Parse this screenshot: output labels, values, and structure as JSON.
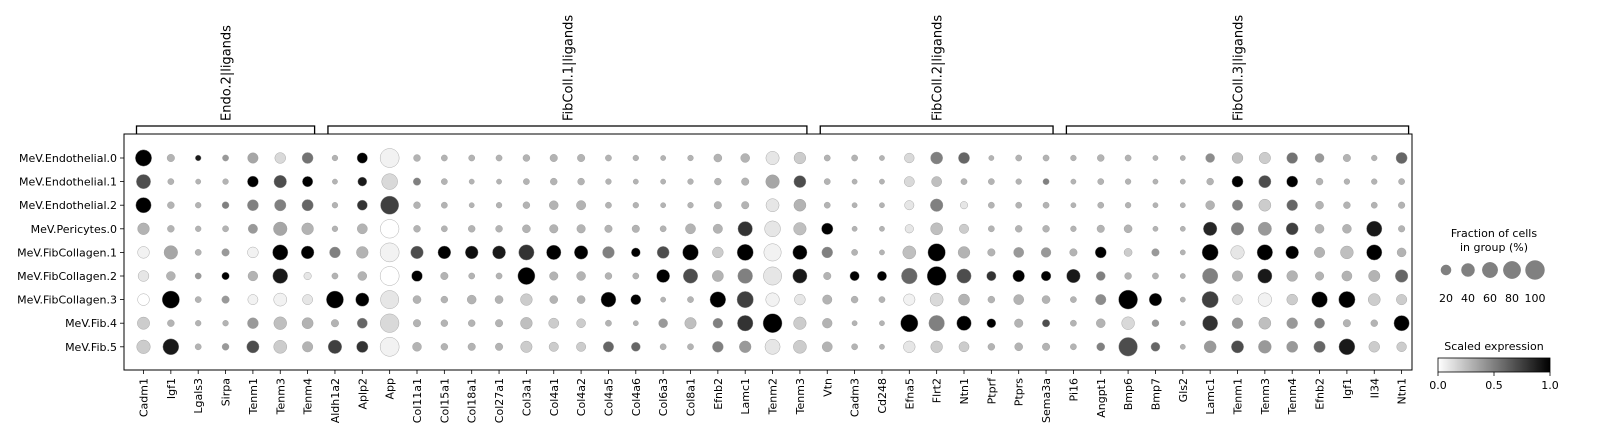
{
  "chart_data": {
    "type": "dotplot",
    "groups": [
      "Endo.2|ligands",
      "FibColl.1|ligands",
      "FibColl.2|ligands",
      "FibColl.3|ligands"
    ],
    "group_spans": [
      [
        0,
        6
      ],
      [
        7,
        24
      ],
      [
        25,
        33
      ],
      [
        34,
        46
      ]
    ],
    "genes": [
      "Cadm1",
      "Igf1",
      "Lgals3",
      "Sirpa",
      "Tenm1",
      "Tenm3",
      "Tenm4",
      "Aldh1a2",
      "Aplp2",
      "App",
      "Col11a1",
      "Col15a1",
      "Col18a1",
      "Col27a1",
      "Col3a1",
      "Col4a1",
      "Col4a2",
      "Col4a5",
      "Col4a6",
      "Col6a3",
      "Col8a1",
      "Efnb2",
      "Lamc1",
      "Tenm2",
      "Tenm3",
      "Vtn",
      "Cadm3",
      "Cd248",
      "Efna5",
      "Flrt2",
      "Ntn1",
      "Ptprf",
      "Ptprs",
      "Sema3a",
      "Pi16",
      "Angpt1",
      "Bmp6",
      "Bmp7",
      "Gls2",
      "Lamc1",
      "Tenm1",
      "Tenm3",
      "Tenm4",
      "Efnb2",
      "Igf1",
      "Il34",
      "Ntn1"
    ],
    "rows": [
      "MeV.Endothelial.0",
      "MeV.Endothelial.1",
      "MeV.Endothelial.2",
      "MeV.Pericytes.0",
      "MeV.FibCollagen.1",
      "MeV.FibCollagen.2",
      "MeV.FibCollagen.3",
      "MeV.Fib.4",
      "MeV.Fib.5"
    ],
    "fraction": [
      [
        70,
        8,
        3,
        4,
        22,
        24,
        25,
        3,
        22,
        100,
        6,
        4,
        4,
        4,
        6,
        8,
        8,
        4,
        3,
        2,
        3,
        10,
        14,
        42,
        30,
        4,
        4,
        2,
        18,
        32,
        26,
        2,
        4,
        4,
        3,
        6,
        4,
        2,
        2,
        14,
        24,
        28,
        24,
        14,
        8,
        3,
        26
      ],
      [
        50,
        4,
        2,
        3,
        25,
        36,
        22,
        2,
        14,
        65,
        8,
        4,
        2,
        2,
        4,
        6,
        6,
        3,
        2,
        2,
        3,
        6,
        8,
        44,
        32,
        4,
        2,
        2,
        20,
        20,
        4,
        4,
        3,
        4,
        2,
        4,
        3,
        2,
        2,
        6,
        26,
        34,
        26,
        6,
        3,
        3,
        4
      ],
      [
        60,
        6,
        3,
        6,
        25,
        28,
        27,
        3,
        20,
        90,
        6,
        4,
        2,
        3,
        6,
        14,
        16,
        4,
        3,
        2,
        3,
        8,
        8,
        40,
        32,
        4,
        2,
        2,
        16,
        36,
        8,
        4,
        4,
        4,
        2,
        4,
        3,
        2,
        2,
        14,
        22,
        32,
        24,
        10,
        6,
        4,
        5
      ],
      [
        30,
        6,
        3,
        4,
        16,
        44,
        30,
        3,
        20,
        95,
        6,
        4,
        6,
        6,
        10,
        12,
        12,
        8,
        8,
        4,
        20,
        16,
        52,
        65,
        36,
        28,
        2,
        2,
        12,
        32,
        16,
        4,
        6,
        6,
        3,
        8,
        10,
        2,
        2,
        44,
        36,
        42,
        32,
        14,
        14,
        60,
        5
      ],
      [
        30,
        44,
        4,
        8,
        24,
        60,
        38,
        24,
        30,
        100,
        36,
        38,
        38,
        40,
        60,
        52,
        44,
        30,
        14,
        32,
        64,
        24,
        68,
        80,
        50,
        24,
        4,
        2,
        40,
        82,
        30,
        8,
        20,
        18,
        8,
        26,
        10,
        8,
        2,
        68,
        44,
        62,
        38,
        22,
        38,
        60,
        14
      ],
      [
        24,
        14,
        4,
        8,
        18,
        56,
        8,
        4,
        14,
        100,
        24,
        8,
        4,
        4,
        78,
        12,
        14,
        6,
        4,
        40,
        52,
        26,
        54,
        90,
        50,
        8,
        16,
        16,
        64,
        100,
        50,
        16,
        30,
        18,
        44,
        14,
        6,
        4,
        2,
        60,
        22,
        50,
        24,
        12,
        20,
        28,
        36
      ],
      [
        30,
        80,
        4,
        8,
        20,
        40,
        20,
        78,
        42,
        90,
        10,
        6,
        14,
        10,
        30,
        10,
        10,
        56,
        20,
        2,
        4,
        64,
        70,
        44,
        24,
        16,
        6,
        4,
        28,
        40,
        26,
        6,
        20,
        10,
        4,
        22,
        100,
        36,
        2,
        70,
        18,
        44,
        24,
        64,
        70,
        32,
        22
      ],
      [
        34,
        6,
        3,
        3,
        24,
        38,
        26,
        8,
        20,
        95,
        8,
        6,
        6,
        8,
        30,
        20,
        14,
        4,
        2,
        14,
        28,
        18,
        62,
        100,
        36,
        18,
        2,
        2,
        80,
        62,
        52,
        14,
        12,
        8,
        4,
        14,
        38,
        6,
        2,
        58,
        24,
        32,
        24,
        20,
        8,
        6,
        60
      ],
      [
        44,
        66,
        4,
        6,
        34,
        40,
        22,
        44,
        28,
        100,
        14,
        6,
        8,
        8,
        28,
        16,
        16,
        22,
        14,
        4,
        4,
        24,
        30,
        58,
        40,
        20,
        4,
        2,
        30,
        30,
        20,
        6,
        10,
        8,
        4,
        10,
        96,
        14,
        2,
        32,
        34,
        38,
        26,
        28,
        66,
        24,
        18
      ]
    ],
    "expression": [
      [
        1.0,
        0.3,
        0.9,
        0.4,
        0.35,
        0.15,
        0.55,
        0.3,
        1.0,
        0.05,
        0.3,
        0.3,
        0.3,
        0.3,
        0.3,
        0.3,
        0.3,
        0.3,
        0.3,
        0.3,
        0.3,
        0.3,
        0.3,
        0.1,
        0.2,
        0.3,
        0.3,
        0.3,
        0.15,
        0.5,
        0.6,
        0.3,
        0.3,
        0.3,
        0.3,
        0.3,
        0.3,
        0.3,
        0.3,
        0.45,
        0.25,
        0.2,
        0.55,
        0.4,
        0.3,
        0.3,
        0.6
      ],
      [
        0.7,
        0.3,
        0.3,
        0.3,
        1.0,
        0.7,
        1.0,
        0.3,
        0.9,
        0.15,
        0.5,
        0.3,
        0.3,
        0.3,
        0.3,
        0.3,
        0.3,
        0.3,
        0.3,
        0.3,
        0.3,
        0.3,
        0.3,
        0.35,
        0.7,
        0.3,
        0.3,
        0.3,
        0.15,
        0.25,
        0.3,
        0.3,
        0.3,
        0.5,
        0.3,
        0.3,
        0.3,
        0.3,
        0.3,
        0.3,
        1.0,
        0.7,
        1.0,
        0.3,
        0.3,
        0.3,
        0.3
      ],
      [
        1.0,
        0.3,
        0.3,
        0.5,
        0.5,
        0.5,
        0.6,
        0.3,
        0.8,
        0.75,
        0.3,
        0.3,
        0.3,
        0.3,
        0.3,
        0.3,
        0.3,
        0.3,
        0.3,
        0.3,
        0.3,
        0.3,
        0.3,
        0.1,
        0.3,
        0.3,
        0.3,
        0.3,
        0.1,
        0.5,
        0.1,
        0.3,
        0.3,
        0.3,
        0.3,
        0.3,
        0.3,
        0.3,
        0.3,
        0.3,
        0.5,
        0.2,
        0.6,
        0.3,
        0.3,
        0.3,
        0.3
      ],
      [
        0.3,
        0.3,
        0.3,
        0.3,
        0.4,
        0.35,
        0.3,
        0.3,
        0.3,
        0.0,
        0.3,
        0.3,
        0.3,
        0.3,
        0.3,
        0.3,
        0.3,
        0.3,
        0.3,
        0.3,
        0.3,
        0.3,
        0.8,
        0.1,
        0.25,
        1.0,
        0.3,
        0.3,
        0.1,
        0.25,
        0.2,
        0.3,
        0.3,
        0.3,
        0.3,
        0.3,
        0.3,
        0.3,
        0.3,
        0.85,
        0.5,
        0.4,
        0.75,
        0.3,
        0.3,
        0.9,
        0.3
      ],
      [
        0.05,
        0.35,
        0.3,
        0.4,
        0.05,
        1.0,
        1.0,
        0.5,
        0.3,
        0.05,
        0.7,
        1.0,
        0.95,
        0.9,
        0.8,
        1.0,
        1.0,
        0.5,
        1.0,
        0.7,
        1.0,
        0.2,
        1.0,
        0.05,
        1.0,
        0.5,
        0.3,
        0.3,
        0.25,
        1.0,
        0.3,
        0.3,
        0.4,
        0.4,
        0.3,
        1.0,
        0.2,
        0.4,
        0.3,
        1.0,
        0.1,
        1.0,
        1.0,
        0.3,
        0.25,
        1.0,
        0.3
      ],
      [
        0.1,
        0.3,
        0.4,
        1.0,
        0.3,
        0.9,
        0.1,
        0.3,
        0.3,
        0.0,
        1.0,
        0.3,
        0.3,
        0.3,
        1.0,
        0.3,
        0.3,
        0.3,
        0.3,
        1.0,
        0.7,
        0.3,
        0.5,
        0.1,
        0.9,
        0.3,
        1.0,
        1.0,
        0.6,
        1.0,
        0.7,
        0.8,
        1.0,
        1.0,
        0.9,
        0.5,
        0.3,
        0.3,
        0.3,
        0.5,
        0.3,
        0.9,
        0.3,
        0.3,
        0.3,
        0.3,
        0.6
      ],
      [
        0.0,
        1.0,
        0.3,
        0.4,
        0.05,
        0.05,
        0.1,
        1.0,
        1.0,
        0.1,
        0.3,
        0.3,
        0.3,
        0.3,
        0.2,
        0.3,
        0.3,
        1.0,
        1.0,
        0.3,
        0.3,
        1.0,
        0.75,
        0.05,
        0.1,
        0.3,
        0.3,
        0.3,
        0.05,
        0.15,
        0.3,
        0.3,
        0.3,
        0.3,
        0.3,
        0.45,
        1.0,
        1.0,
        0.3,
        0.75,
        0.1,
        0.05,
        0.2,
        1.0,
        1.0,
        0.2,
        0.2
      ],
      [
        0.2,
        0.3,
        0.3,
        0.3,
        0.4,
        0.25,
        0.3,
        0.3,
        0.6,
        0.15,
        0.3,
        0.3,
        0.3,
        0.3,
        0.25,
        0.2,
        0.2,
        0.3,
        0.3,
        0.4,
        0.25,
        0.5,
        0.8,
        1.0,
        0.2,
        0.3,
        0.3,
        0.3,
        1.0,
        0.5,
        1.0,
        1.0,
        0.3,
        0.7,
        0.3,
        0.3,
        0.15,
        0.4,
        0.3,
        0.8,
        0.4,
        0.25,
        0.4,
        0.5,
        0.3,
        0.3,
        1.0
      ],
      [
        0.2,
        0.9,
        0.3,
        0.4,
        0.7,
        0.2,
        0.3,
        0.75,
        0.8,
        0.05,
        0.3,
        0.3,
        0.3,
        0.3,
        0.2,
        0.2,
        0.2,
        0.6,
        0.6,
        0.3,
        0.3,
        0.5,
        0.4,
        0.1,
        0.2,
        0.3,
        0.3,
        0.3,
        0.1,
        0.2,
        0.2,
        0.3,
        0.3,
        0.3,
        0.3,
        0.5,
        0.7,
        0.6,
        0.3,
        0.4,
        0.7,
        0.4,
        0.4,
        0.6,
        0.9,
        0.2,
        0.2
      ]
    ],
    "size_legend": {
      "title_line1": "Fraction of cells",
      "title_line2": "in group (%)",
      "values": [
        20,
        40,
        60,
        80,
        100
      ],
      "labels": [
        "20",
        "40",
        "60",
        "80",
        "100"
      ]
    },
    "color_legend": {
      "title": "Scaled expression",
      "ticks": [
        "0.0",
        "0.5",
        "1.0"
      ],
      "range": [
        0,
        1
      ],
      "colormap": [
        "#ffffff",
        "#000000"
      ]
    }
  }
}
